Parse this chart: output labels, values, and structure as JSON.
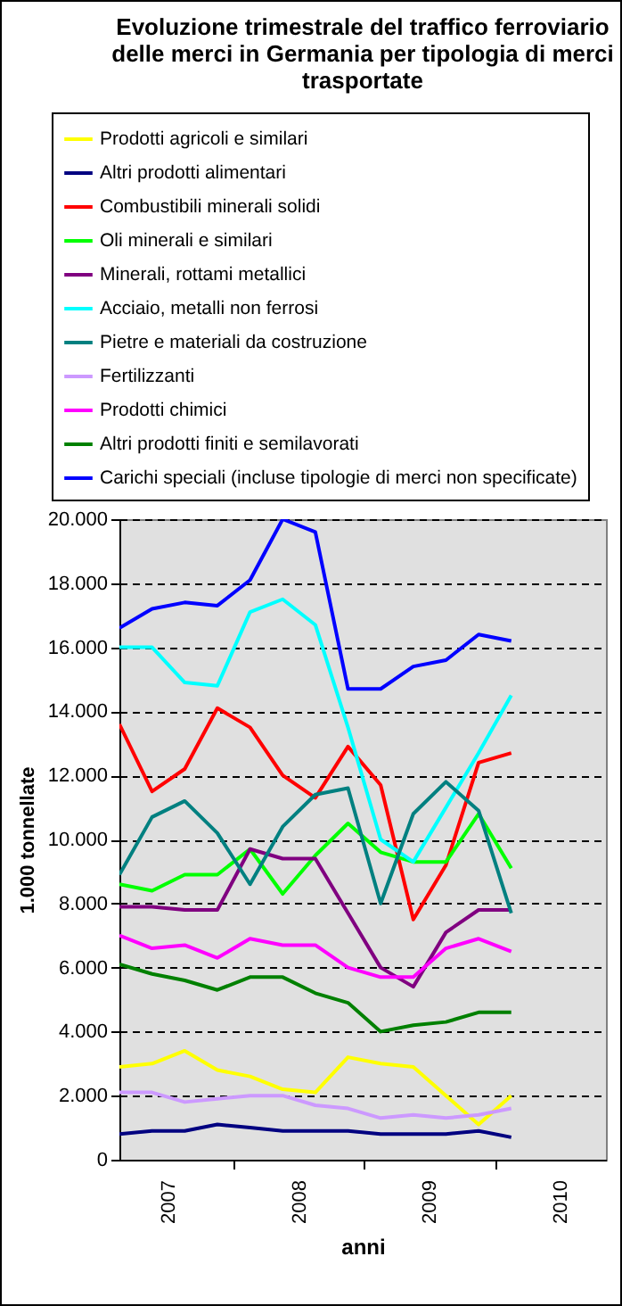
{
  "chart_data": {
    "type": "line",
    "title": "Evoluzione trimestrale del traffico ferroviario delle merci in Germania per tipologia di merci trasportate",
    "xlabel": "anni",
    "ylabel": "1.000 tonnellate",
    "x": [
      2007.125,
      2007.375,
      2007.625,
      2007.875,
      2008.125,
      2008.375,
      2008.625,
      2008.875,
      2009.125,
      2009.375,
      2009.625,
      2009.875,
      2010.125
    ],
    "xlim": [
      2007.125,
      2010.85
    ],
    "xticks": [
      {
        "value": 2007.5,
        "label": "2007"
      },
      {
        "value": 2008,
        "label": null
      },
      {
        "value": 2008.5,
        "label": "2008"
      },
      {
        "value": 2009,
        "label": null
      },
      {
        "value": 2009.5,
        "label": "2009"
      },
      {
        "value": 2010,
        "label": null
      },
      {
        "value": 2010.5,
        "label": "2010"
      }
    ],
    "ylim": [
      0,
      20000
    ],
    "yticks": [
      0,
      {
        "value": 2000,
        "label": "2.000"
      },
      {
        "value": 4000,
        "label": "4.000"
      },
      {
        "value": 6000,
        "label": "6.000"
      },
      {
        "value": 8000,
        "label": "8.000"
      },
      {
        "value": 10000,
        "label": "10.000"
      },
      {
        "value": 12000,
        "label": "12.000"
      },
      {
        "value": 14000,
        "label": "14.000"
      },
      {
        "value": 16000,
        "label": "16.000"
      },
      {
        "value": 18000,
        "label": "18.000"
      },
      {
        "value": 20000,
        "label": "20.000"
      }
    ],
    "grid": "y",
    "legend": "top",
    "line_style": "solid",
    "series": [
      {
        "name": "Prodotti agricoli e similari",
        "color": "#ffff00",
        "values": [
          2900,
          3000,
          3400,
          2800,
          2600,
          2200,
          2100,
          3200,
          3000,
          2900,
          2000,
          1100,
          2000
        ]
      },
      {
        "name": "Altri prodotti alimentari",
        "color": "#000080",
        "values": [
          800,
          900,
          900,
          1100,
          1000,
          900,
          900,
          900,
          800,
          800,
          800,
          900,
          700
        ]
      },
      {
        "name": "Combustibili minerali solidi",
        "color": "#ff0000",
        "values": [
          13600,
          11500,
          12200,
          14100,
          13500,
          12000,
          11300,
          12900,
          11700,
          7500,
          9200,
          12400,
          12700
        ]
      },
      {
        "name": "Oli minerali e similari",
        "color": "#00ff00",
        "values": [
          8600,
          8400,
          8900,
          8900,
          9700,
          8300,
          9500,
          10500,
          9600,
          9300,
          9300,
          10800,
          9100
        ]
      },
      {
        "name": "Minerali, rottami metallici",
        "color": "#800080",
        "values": [
          7900,
          7900,
          7800,
          7800,
          9700,
          9400,
          9400,
          7700,
          6000,
          5400,
          7100,
          7800,
          7800
        ]
      },
      {
        "name": "Acciaio, metalli non ferrosi",
        "color": "#00ffff",
        "values": [
          16000,
          16000,
          14900,
          14800,
          17100,
          17500,
          16700,
          13500,
          10000,
          9300,
          11000,
          12700,
          14500
        ]
      },
      {
        "name": "Pietre e materiali da costruzione",
        "color": "#008080",
        "values": [
          8900,
          10700,
          11200,
          10200,
          8600,
          10400,
          11400,
          11600,
          8000,
          10800,
          11800,
          10900,
          7700
        ]
      },
      {
        "name": "Fertilizzanti",
        "color": "#cc99ff",
        "values": [
          2100,
          2100,
          1800,
          1900,
          2000,
          2000,
          1700,
          1600,
          1300,
          1400,
          1300,
          1400,
          1600
        ]
      },
      {
        "name": "Prodotti chimici",
        "color": "#ff00ff",
        "values": [
          7000,
          6600,
          6700,
          6300,
          6900,
          6700,
          6700,
          6000,
          5700,
          5700,
          6600,
          6900,
          6500
        ]
      },
      {
        "name": "Altri prodotti finiti e semilavorati",
        "color": "#008000",
        "values": [
          6100,
          5800,
          5600,
          5300,
          5700,
          5700,
          5200,
          4900,
          4000,
          4200,
          4300,
          4600,
          4600
        ]
      },
      {
        "name": "Carichi speciali (incluse tipologie di merci non specificate)",
        "color": "#0000ff",
        "values": [
          16600,
          17200,
          17400,
          17300,
          18100,
          20000,
          19600,
          14700,
          14700,
          15400,
          15600,
          16400,
          16200
        ]
      }
    ]
  }
}
